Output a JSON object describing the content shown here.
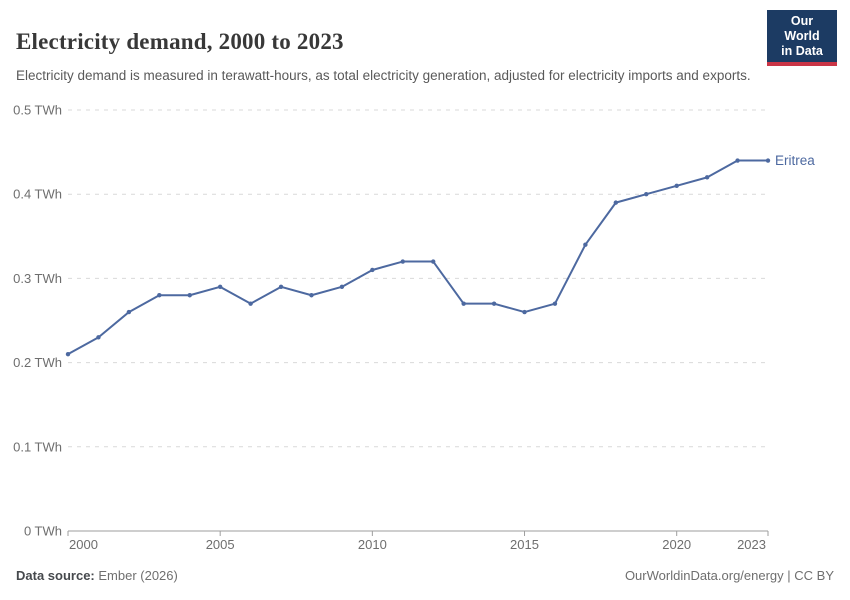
{
  "header": {
    "title": "Electricity demand, 2000 to 2023",
    "subtitle": "Electricity demand is measured in terawatt-hours, as total electricity generation, adjusted for electricity imports and exports.",
    "logo": {
      "line1": "Our World",
      "line2": "in Data"
    }
  },
  "chart_data": {
    "type": "line",
    "title": "Electricity demand, 2000 to 2023",
    "xlabel": "",
    "ylabel": "TWh",
    "xlim": [
      2000,
      2023
    ],
    "ylim": [
      0,
      0.5
    ],
    "grid": "horizontal-dashed",
    "legend_position": "end-of-line-label",
    "x_ticks": [
      2000,
      2005,
      2010,
      2015,
      2020,
      2023
    ],
    "y_ticks": [
      {
        "value": 0,
        "label": "0 TWh"
      },
      {
        "value": 0.1,
        "label": "0.1 TWh"
      },
      {
        "value": 0.2,
        "label": "0.2 TWh"
      },
      {
        "value": 0.3,
        "label": "0.3 TWh"
      },
      {
        "value": 0.4,
        "label": "0.4 TWh"
      },
      {
        "value": 0.5,
        "label": "0.5 TWh"
      }
    ],
    "series": [
      {
        "name": "Eritrea",
        "color": "#4d69a0",
        "x": [
          2000,
          2001,
          2002,
          2003,
          2004,
          2005,
          2006,
          2007,
          2008,
          2009,
          2010,
          2011,
          2012,
          2013,
          2014,
          2015,
          2016,
          2017,
          2018,
          2019,
          2020,
          2021,
          2022,
          2023
        ],
        "values": [
          0.21,
          0.23,
          0.26,
          0.28,
          0.28,
          0.29,
          0.27,
          0.29,
          0.28,
          0.29,
          0.31,
          0.32,
          0.32,
          0.27,
          0.27,
          0.26,
          0.27,
          0.34,
          0.39,
          0.4,
          0.41,
          0.42,
          0.44,
          0.44
        ]
      }
    ],
    "colors": {
      "grid": "#d9d9d9",
      "axis": "#9e9e9e",
      "tick_label": "#6e6e6e"
    }
  },
  "footer": {
    "source_label": "Data source:",
    "source_value": " Ember (2026)",
    "attribution": "OurWorldinData.org/energy | CC BY"
  }
}
